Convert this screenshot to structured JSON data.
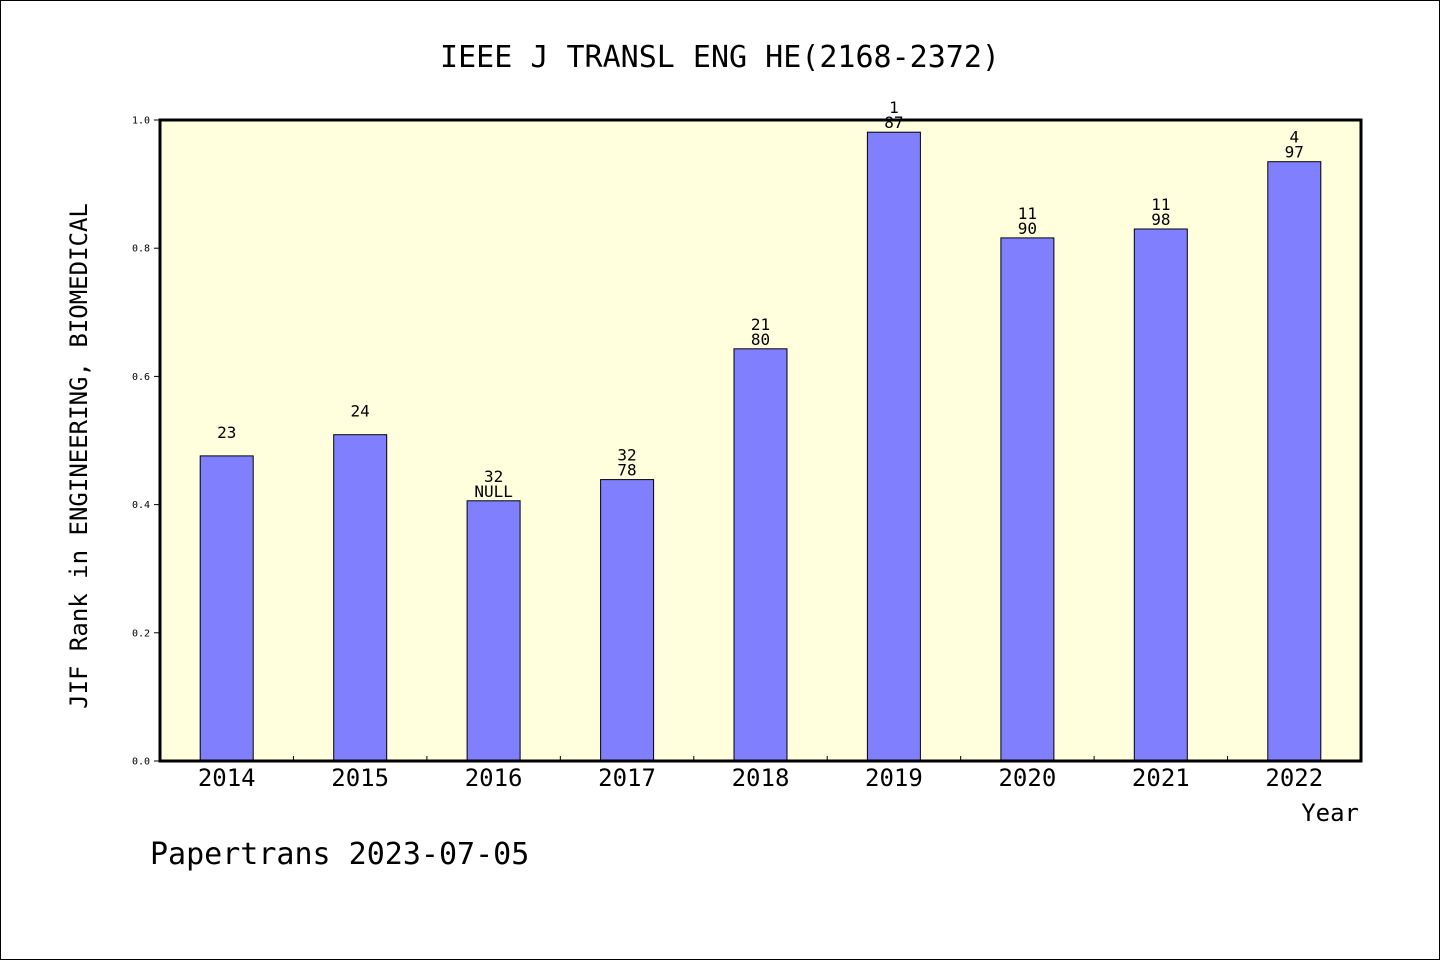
{
  "chart_data": {
    "type": "bar",
    "title": "IEEE J TRANSL ENG HE(2168-2372)",
    "xlabel": "Year",
    "ylabel": "JIF Rank in ENGINEERING, BIOMEDICAL",
    "ylim": [
      0.0,
      1.0
    ],
    "yticks": [
      "0.0",
      "0.2",
      "0.4",
      "0.6",
      "0.8",
      "1.0"
    ],
    "categories": [
      "2014",
      "2015",
      "2016",
      "2017",
      "2018",
      "2019",
      "2020",
      "2021",
      "2022"
    ],
    "values": [
      0.476,
      0.509,
      0.406,
      0.439,
      0.643,
      0.981,
      0.816,
      0.83,
      0.935
    ],
    "bar_labels": [
      [
        "23"
      ],
      [
        "24"
      ],
      [
        "32",
        "NULL"
      ],
      [
        "32",
        "78"
      ],
      [
        "21",
        "80"
      ],
      [
        "1",
        "87"
      ],
      [
        "11",
        "90"
      ],
      [
        "11",
        "98"
      ],
      [
        "4",
        "97"
      ]
    ],
    "grid": false,
    "colors": {
      "bar": "#8080ff",
      "plot_background": "#ffffdd",
      "axis": "#000000"
    }
  },
  "footer": {
    "text": "Papertrans 2023-07-05"
  }
}
